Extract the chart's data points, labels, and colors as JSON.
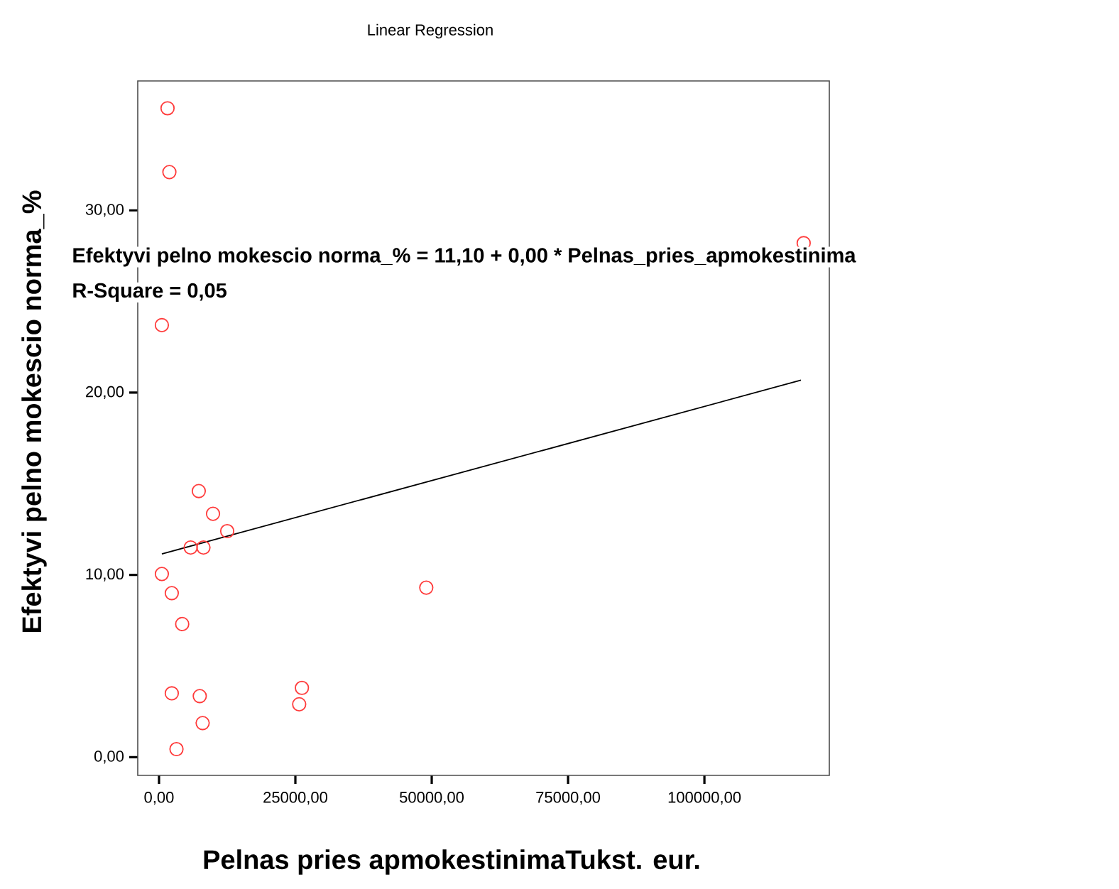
{
  "chart_data": {
    "type": "scatter",
    "title": "Linear Regression",
    "xlabel": "Pelnas pries apmokestinimaTukst. eur.",
    "ylabel": "Efektyvi pelno mokescio norma_%",
    "annotations": [
      "Efektyvi pelno mokescio norma_% = 11,10 + 0,00 * Pelnas_pries_apmokestinima",
      "R-Square = 0,05"
    ],
    "xlim": [
      -3900,
      122900
    ],
    "ylim": [
      -1,
      37.1
    ],
    "xticks": [
      {
        "value": 0,
        "label": "0,00"
      },
      {
        "value": 25000,
        "label": "25000,00"
      },
      {
        "value": 50000,
        "label": "50000,00"
      },
      {
        "value": 75000,
        "label": "75000,00"
      },
      {
        "value": 100000,
        "label": "100000,00"
      }
    ],
    "yticks": [
      {
        "value": 0,
        "label": "0,00"
      },
      {
        "value": 10,
        "label": "10,00"
      },
      {
        "value": 20,
        "label": "20,00"
      },
      {
        "value": 30,
        "label": "30,00"
      }
    ],
    "marker": "circle",
    "series": [
      {
        "color": "#ff3b3b",
        "x": [
          1560,
          1900,
          520,
          7290,
          9900,
          12500,
          5800,
          8150,
          520,
          2340,
          4250,
          2340,
          7470,
          8000,
          3200,
          26200,
          25700,
          49000,
          118200
        ],
        "values": [
          35.6,
          32.1,
          23.7,
          14.6,
          13.35,
          12.4,
          11.5,
          11.5,
          10.05,
          9.0,
          7.3,
          3.5,
          3.35,
          1.87,
          0.44,
          3.8,
          2.9,
          9.3,
          28.2
        ]
      },
      {
        "type": "line",
        "color": "#000000",
        "marker": "none",
        "x": [
          520,
          117700
        ],
        "values": [
          11.15,
          20.68
        ]
      }
    ]
  }
}
